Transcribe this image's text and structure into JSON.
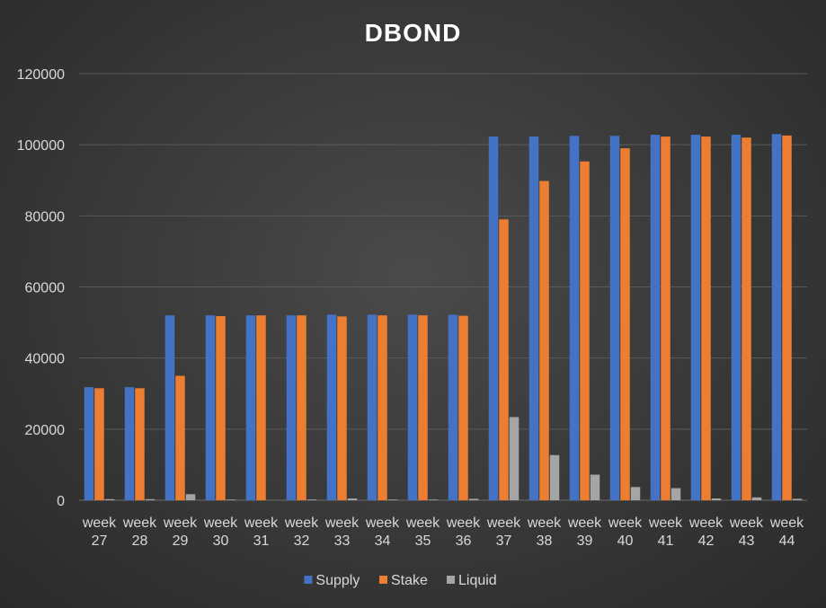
{
  "chart_data": {
    "type": "bar",
    "title": "DBOND",
    "categories": [
      "week 27",
      "week 28",
      "week 29",
      "week 30",
      "week 31",
      "week 32",
      "week 33",
      "week 34",
      "week 35",
      "week 36",
      "week 37",
      "week 38",
      "week 39",
      "week 40",
      "week 41",
      "week 42",
      "week 43",
      "week 44"
    ],
    "series": [
      {
        "name": "Supply",
        "color": "#4472c4",
        "values": [
          31800,
          31800,
          52000,
          52000,
          52000,
          52000,
          52200,
          52200,
          52200,
          52200,
          102300,
          102300,
          102500,
          102500,
          102800,
          102800,
          102800,
          103000
        ]
      },
      {
        "name": "Stake",
        "color": "#ed7d31",
        "values": [
          31500,
          31500,
          35000,
          51800,
          52000,
          52000,
          51700,
          52000,
          52000,
          51900,
          79000,
          89800,
          95300,
          99000,
          102300,
          102300,
          102000,
          102600
        ]
      },
      {
        "name": "Liquid",
        "color": "#a5a5a5",
        "values": [
          300,
          300,
          1700,
          200,
          0,
          200,
          500,
          200,
          200,
          400,
          23400,
          12700,
          7200,
          3700,
          3400,
          500,
          800,
          400
        ]
      }
    ],
    "ylim": [
      0,
      120000
    ],
    "yticks": [
      0,
      20000,
      40000,
      60000,
      80000,
      100000,
      120000
    ],
    "grid": true,
    "legend": "bottom"
  }
}
